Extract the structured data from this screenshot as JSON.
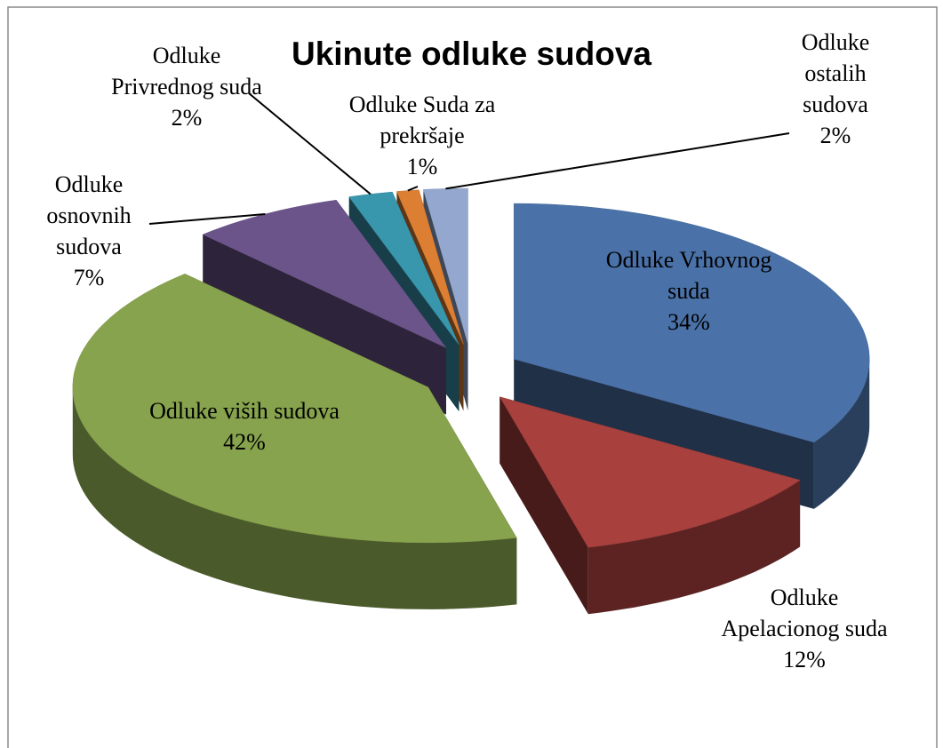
{
  "chart_data": {
    "type": "pie",
    "title": "Ukinute odluke sudova",
    "categories": [
      "Odluke Vrhovnog suda",
      "Odluke Apelacionog suda",
      "Odluke viših sudova",
      "Odluke osnovnih sudova",
      "Odluke Privrednog suda",
      "Odluke Suda za prekršaje",
      "Odluke ostalih sudova"
    ],
    "values": [
      34,
      12,
      42,
      7,
      2,
      1,
      2
    ],
    "value_labels": [
      "34%",
      "12%",
      "42%",
      "7%",
      "2%",
      "1%",
      "2%"
    ],
    "colors": [
      "#4a72a8",
      "#a8403d",
      "#87a34d",
      "#6b548a",
      "#3896ad",
      "#dd7f33",
      "#94a8cf"
    ]
  }
}
